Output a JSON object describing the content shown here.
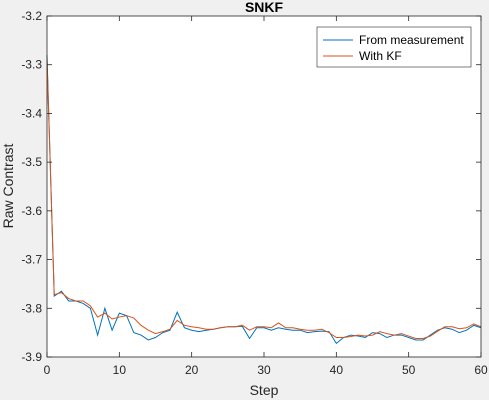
{
  "chart_data": {
    "type": "line",
    "title": "SNKF",
    "xlabel": "Step",
    "ylabel": "Raw Contrast",
    "xlim": [
      0,
      60
    ],
    "ylim": [
      -3.9,
      -3.2
    ],
    "xticks": [
      "0",
      "10",
      "20",
      "30",
      "40",
      "50",
      "60"
    ],
    "yticks": [
      "-3.2",
      "-3.3",
      "-3.4",
      "-3.5",
      "-3.6",
      "-3.7",
      "-3.8",
      "-3.9"
    ],
    "grid": false,
    "legend_position": "top-right",
    "x": [
      0,
      1,
      2,
      3,
      4,
      5,
      6,
      7,
      8,
      9,
      10,
      11,
      12,
      13,
      14,
      15,
      16,
      17,
      18,
      19,
      20,
      21,
      22,
      23,
      24,
      25,
      26,
      27,
      28,
      29,
      30,
      31,
      32,
      33,
      34,
      35,
      36,
      37,
      38,
      39,
      40,
      41,
      42,
      43,
      44,
      45,
      46,
      47,
      48,
      49,
      50,
      51,
      52,
      53,
      54,
      55,
      56,
      57,
      58,
      59,
      60
    ],
    "series": [
      {
        "name": "From measurement",
        "color": "#0072bd",
        "values": [
          -3.28,
          -3.775,
          -3.765,
          -3.785,
          -3.785,
          -3.79,
          -3.8,
          -3.855,
          -3.8,
          -3.845,
          -3.81,
          -3.815,
          -3.85,
          -3.855,
          -3.865,
          -3.86,
          -3.85,
          -3.845,
          -3.808,
          -3.84,
          -3.845,
          -3.848,
          -3.845,
          -3.843,
          -3.84,
          -3.838,
          -3.838,
          -3.837,
          -3.862,
          -3.84,
          -3.84,
          -3.845,
          -3.84,
          -3.843,
          -3.845,
          -3.845,
          -3.85,
          -3.848,
          -3.847,
          -3.848,
          -3.872,
          -3.86,
          -3.855,
          -3.857,
          -3.86,
          -3.85,
          -3.852,
          -3.86,
          -3.855,
          -3.855,
          -3.86,
          -3.865,
          -3.865,
          -3.855,
          -3.845,
          -3.84,
          -3.843,
          -3.85,
          -3.845,
          -3.835,
          -3.84
        ]
      },
      {
        "name": "With KF",
        "color": "#d95319",
        "values": [
          -3.29,
          -3.772,
          -3.768,
          -3.78,
          -3.785,
          -3.785,
          -3.795,
          -3.818,
          -3.81,
          -3.822,
          -3.818,
          -3.815,
          -3.82,
          -3.835,
          -3.845,
          -3.852,
          -3.848,
          -3.843,
          -3.825,
          -3.835,
          -3.838,
          -3.84,
          -3.843,
          -3.843,
          -3.84,
          -3.838,
          -3.838,
          -3.835,
          -3.845,
          -3.838,
          -3.838,
          -3.84,
          -3.83,
          -3.84,
          -3.84,
          -3.843,
          -3.845,
          -3.845,
          -3.843,
          -3.85,
          -3.86,
          -3.86,
          -3.858,
          -3.855,
          -3.857,
          -3.855,
          -3.848,
          -3.852,
          -3.855,
          -3.852,
          -3.857,
          -3.862,
          -3.862,
          -3.857,
          -3.847,
          -3.838,
          -3.838,
          -3.842,
          -3.84,
          -3.832,
          -3.838
        ]
      }
    ]
  }
}
